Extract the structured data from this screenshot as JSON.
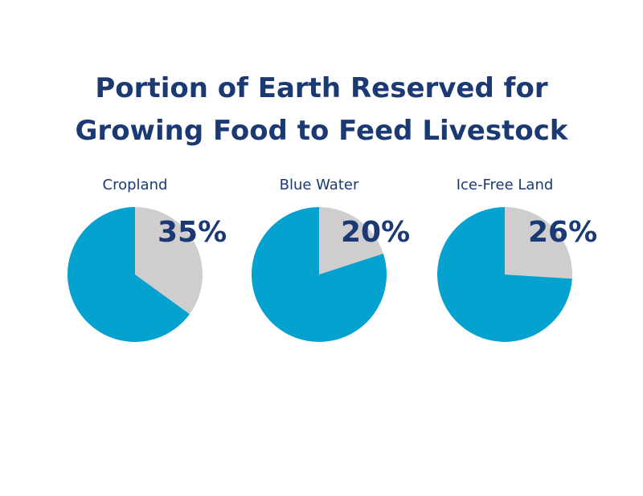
{
  "title_lines": [
    "Portion of Earth Reserved for",
    "Growing Food to Feed Livestock"
  ],
  "colors": {
    "title": "#1b3a73",
    "slice_highlight": "#cfcdcd",
    "slice_rest": "#05a2cf"
  },
  "chart_data": [
    {
      "type": "pie",
      "title": "Cropland",
      "slices": [
        {
          "value": 35,
          "color": "#cfcdcd"
        },
        {
          "value": 65,
          "color": "#05a2cf"
        }
      ],
      "data_label": "35%"
    },
    {
      "type": "pie",
      "title": "Blue Water",
      "slices": [
        {
          "value": 20,
          "color": "#cfcdcd"
        },
        {
          "value": 80,
          "color": "#05a2cf"
        }
      ],
      "data_label": "20%"
    },
    {
      "type": "pie",
      "title": "Ice-Free Land",
      "slices": [
        {
          "value": 26,
          "color": "#cfcdcd"
        },
        {
          "value": 74,
          "color": "#05a2cf"
        }
      ],
      "data_label": "26%"
    }
  ]
}
